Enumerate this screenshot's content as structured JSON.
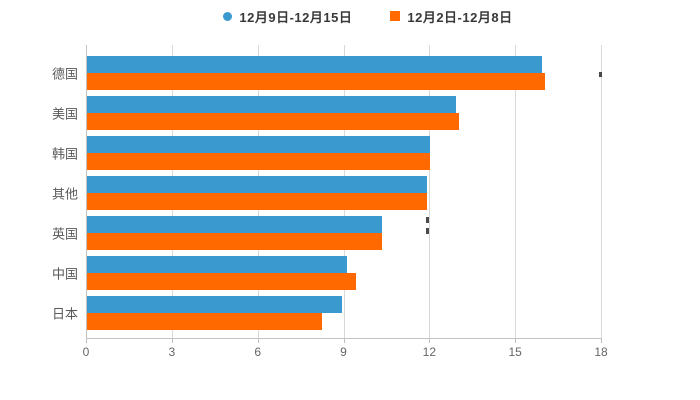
{
  "legend": {
    "items": [
      {
        "label": "12月9日-12月15日",
        "marker": "circle",
        "color": "#3a99ce"
      },
      {
        "label": "12月2日-12月8日",
        "marker": "square",
        "color": "#ff6900"
      }
    ]
  },
  "chart_data": {
    "type": "bar",
    "orientation": "horizontal",
    "title": "",
    "xlabel": "",
    "ylabel": "",
    "categories": [
      "德国",
      "美国",
      "韩国",
      "其他",
      "英国",
      "中国",
      "日本"
    ],
    "series": [
      {
        "name": "12月9日-12月15日",
        "color": "#3a99ce",
        "values": [
          15.9,
          12.9,
          12.0,
          11.9,
          10.3,
          9.1,
          8.9
        ]
      },
      {
        "name": "12月2日-12月8日",
        "color": "#ff6900",
        "values": [
          16.0,
          13.0,
          12.0,
          11.9,
          10.3,
          9.4,
          8.2
        ]
      }
    ],
    "xlim": [
      0,
      18
    ],
    "xticks": [
      0,
      3,
      6,
      9,
      12,
      15,
      18
    ],
    "grid": "vertical-on",
    "legend_position": "top-center",
    "colors": {
      "gridline": "#d9d9d9",
      "axis": "#c3c3c3",
      "tick_label": "#666666",
      "category_label": "#595959",
      "legend_text": "#383838",
      "background": "#ffffff"
    }
  }
}
